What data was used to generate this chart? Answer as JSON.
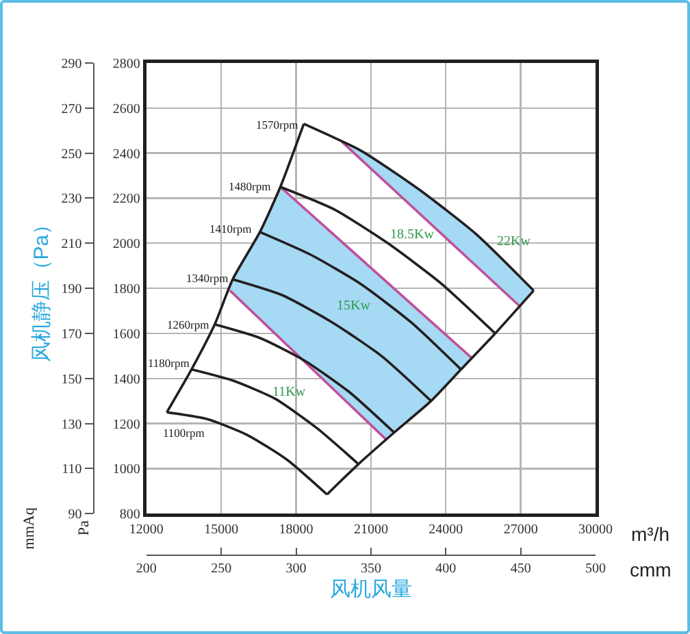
{
  "chart_data": {
    "type": "line",
    "y2label": "风机静压（Pa）",
    "xlabel": "风机风量",
    "xlim": [
      12000,
      30000
    ],
    "xticks": [
      12000,
      15000,
      18000,
      21000,
      24000,
      27000,
      30000
    ],
    "ylim": [
      800,
      2800
    ],
    "yticks": [
      800,
      1000,
      1200,
      1400,
      1600,
      1800,
      2000,
      2200,
      2400,
      2600,
      2800
    ],
    "x2lim": [
      200,
      500
    ],
    "x2ticks": [
      200,
      250,
      300,
      350,
      400,
      450,
      500
    ],
    "y2lim": [
      90,
      290
    ],
    "y2ticks": [
      90,
      110,
      130,
      150,
      170,
      190,
      210,
      230,
      250,
      270,
      290
    ],
    "grid": true,
    "series": [
      {
        "type": "area",
        "color": "#a6d9f3",
        "x": [
          17370,
          25050,
          24610,
          23410,
          21930,
          21600,
          15350,
          15460,
          16550,
          17370
        ],
        "values": [
          2250,
          1490,
          1440,
          1300,
          1160,
          1130,
          1790,
          1840,
          2050,
          2250
        ]
      },
      {
        "type": "area",
        "color": "#a6d9f3",
        "x": [
          19840,
          26970,
          27520,
          25220,
          22910,
          20610,
          19840
        ],
        "values": [
          2450,
          1720,
          1790,
          2040,
          2240,
          2410,
          2450
        ]
      },
      {
        "color": "#c0509c",
        "x": [
          15350,
          21600
        ],
        "values": [
          1790,
          1130
        ]
      },
      {
        "color": "#c0509c",
        "x": [
          17370,
          25050
        ],
        "values": [
          2250,
          1490
        ]
      },
      {
        "color": "#c0509c",
        "x": [
          19840,
          26970
        ],
        "values": [
          2450,
          1720
        ]
      },
      {
        "color": "#231f20",
        "x": [
          12820,
          14430,
          16030,
          17630,
          19240
        ],
        "values": [
          1250,
          1220,
          1150,
          1040,
          885
        ]
      },
      {
        "color": "#231f20",
        "x": [
          13810,
          15480,
          17160,
          18830,
          20500
        ],
        "values": [
          1440,
          1390,
          1310,
          1180,
          1020
        ]
      },
      {
        "color": "#231f20",
        "x": [
          14740,
          16540,
          18330,
          20130,
          21930
        ],
        "values": [
          1640,
          1580,
          1480,
          1340,
          1160
        ]
      },
      {
        "color": "#231f20",
        "x": [
          15460,
          17440,
          19430,
          21420,
          23410
        ],
        "values": [
          1840,
          1770,
          1650,
          1500,
          1300
        ]
      },
      {
        "color": "#231f20",
        "x": [
          16550,
          18570,
          20580,
          22600,
          24610
        ],
        "values": [
          2050,
          1950,
          1820,
          1650,
          1440
        ]
      },
      {
        "color": "#231f20",
        "x": [
          17370,
          19530,
          21680,
          23830,
          25980
        ],
        "values": [
          2250,
          2150,
          2000,
          1820,
          1600
        ]
      },
      {
        "color": "#231f20",
        "x": [
          18310,
          20610,
          22910,
          25220,
          27520
        ],
        "values": [
          2530,
          2410,
          2240,
          2040,
          1790
        ]
      },
      {
        "color": "#231f20",
        "x": [
          12820,
          13810,
          14740,
          15460,
          16550,
          17370,
          18310
        ],
        "values": [
          1250,
          1440,
          1640,
          1840,
          2050,
          2250,
          2530
        ]
      },
      {
        "color": "#231f20",
        "x": [
          19240,
          20500,
          21930,
          23410,
          24610,
          25980,
          27520
        ],
        "values": [
          885,
          1020,
          1160,
          1300,
          1440,
          1600,
          1790
        ]
      }
    ],
    "annotations": [
      "m³/h",
      "cmm",
      "mmAq",
      "Pa",
      "1100rpm",
      "1180rpm",
      "1260rpm",
      "1340rpm",
      "1410rpm",
      "1480rpm",
      "1570rpm",
      "11Kw",
      "15Kw",
      "18.5Kw",
      "22Kw"
    ]
  }
}
